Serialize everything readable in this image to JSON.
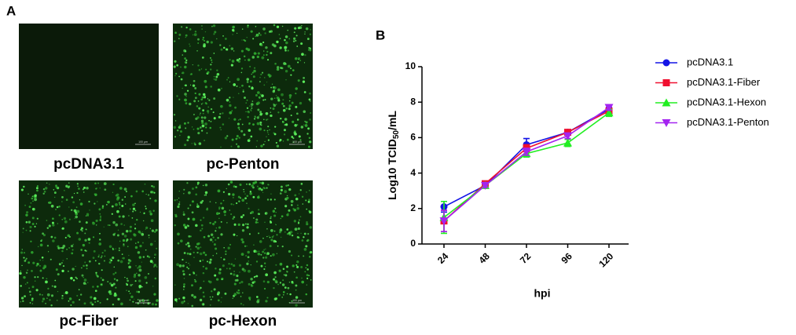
{
  "panel_a": {
    "label": "A",
    "images": [
      {
        "caption": "pcDNA3.1",
        "scale_bar": "100 µm"
      },
      {
        "caption": "pc-Penton",
        "scale_bar": "100 µm"
      },
      {
        "caption": "pc-Fiber",
        "scale_bar": "100 µm"
      },
      {
        "caption": "pc-Hexon",
        "scale_bar": "100 µm"
      }
    ]
  },
  "chart_data": {
    "type": "line",
    "panel_label": "B",
    "x_label": "hpi",
    "y_label": {
      "text": "Log10 TCID",
      "subscript": "50",
      "suffix": "/mL"
    },
    "categories": [
      "24",
      "48",
      "72",
      "96",
      "120"
    ],
    "ylim": [
      0,
      10
    ],
    "yticks": [
      0,
      2,
      4,
      6,
      8,
      10
    ],
    "legend": "right",
    "series": [
      {
        "name": "pcDNA3.1",
        "color": "#1414e6",
        "marker": "circle",
        "values": [
          2.1,
          3.3,
          5.6,
          6.3,
          7.6
        ],
        "errors": [
          0.3,
          0.1,
          0.35,
          0.1,
          0.1
        ]
      },
      {
        "name": "pcDNA3.1-Fiber",
        "color": "#f01030",
        "marker": "square",
        "values": [
          1.3,
          3.4,
          5.4,
          6.3,
          7.5
        ],
        "errors": [
          0.6,
          0.1,
          0.2,
          0.1,
          0.15
        ]
      },
      {
        "name": "pcDNA3.1-Hexon",
        "color": "#22ee22",
        "marker": "triangle-up",
        "values": [
          1.5,
          3.3,
          5.1,
          5.7,
          7.4
        ],
        "errors": [
          0.9,
          0.1,
          0.2,
          0.2,
          0.2
        ]
      },
      {
        "name": "pcDNA3.1-Penton",
        "color": "#a424f0",
        "marker": "triangle-down",
        "values": [
          1.3,
          3.3,
          5.2,
          6.1,
          7.7
        ],
        "errors": [
          0.6,
          0.1,
          0.2,
          0.15,
          0.15
        ]
      }
    ]
  }
}
